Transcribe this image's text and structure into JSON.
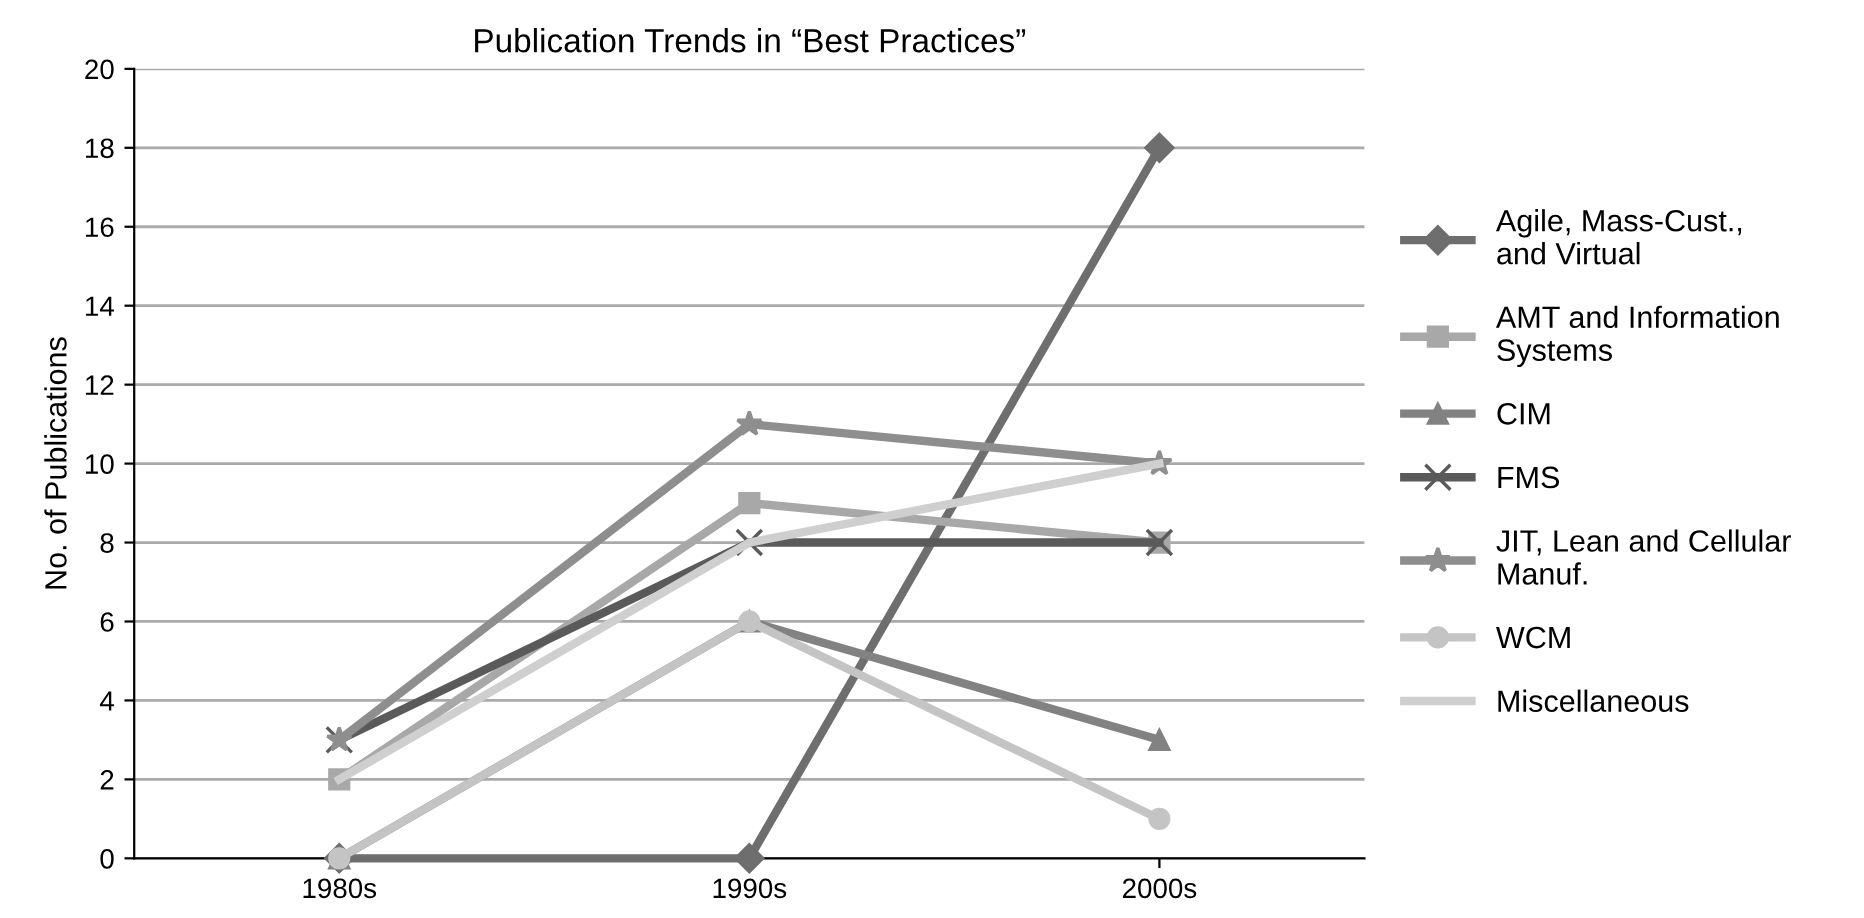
{
  "chart_data": {
    "type": "line",
    "title": "Publication Trends in “Best Practices”",
    "ylabel": "No. of Publications",
    "categories": [
      "1980s",
      "1990s",
      "2000s"
    ],
    "series": [
      {
        "name": "Agile, Mass-Cust.,\nand Virtual",
        "color": "#6e6e6e",
        "marker": "diamond",
        "values": [
          0,
          0,
          18
        ]
      },
      {
        "name": "AMT and Information\nSystems",
        "color": "#a8a8a8",
        "marker": "square",
        "values": [
          2,
          9,
          8
        ]
      },
      {
        "name": "CIM",
        "color": "#828282",
        "marker": "triangle",
        "values": [
          0,
          6,
          3
        ]
      },
      {
        "name": "FMS",
        "color": "#5a5a5a",
        "marker": "cross",
        "values": [
          3,
          8,
          8
        ]
      },
      {
        "name": "JIT, Lean and Cellular\nManuf.",
        "color": "#8e8e8e",
        "marker": "star",
        "values": [
          3,
          11,
          10
        ]
      },
      {
        "name": "WCM",
        "color": "#c4c4c4",
        "marker": "circle",
        "values": [
          0,
          6,
          1
        ]
      },
      {
        "name": "Miscellaneous",
        "color": "#cfcfcf",
        "marker": "none",
        "values": [
          2,
          8,
          10
        ]
      }
    ],
    "ylim": [
      0,
      20
    ],
    "yticks": [
      0,
      2,
      4,
      6,
      8,
      10,
      12,
      14,
      16,
      18,
      20
    ],
    "grid": "y",
    "legend": "right",
    "line_style": "solid"
  }
}
